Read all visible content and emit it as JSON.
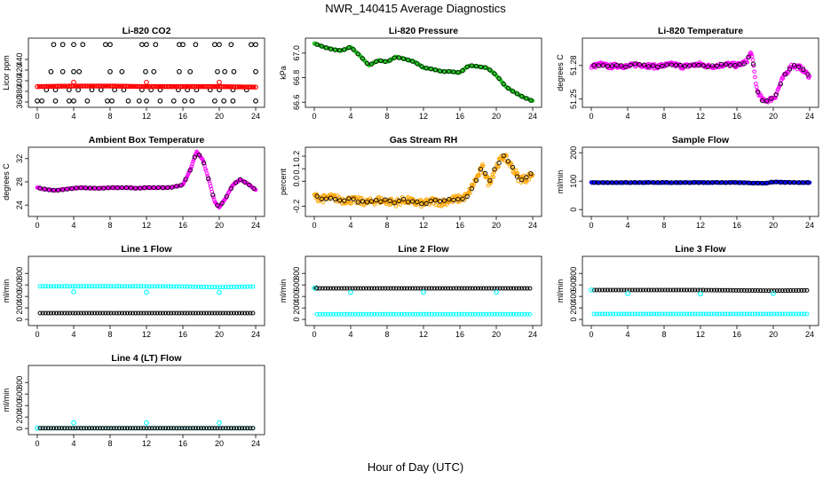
{
  "figure": {
    "title": "NWR_140415  Average Diagnostics",
    "xlabel": "Hour of Day (UTC)"
  },
  "colors": {
    "black": "#000000",
    "red": "#ff0000",
    "green": "#22cc22",
    "magenta": "#ff00ff",
    "orange": "#ffa500",
    "cyan": "#00ffff",
    "blue": "#0000ff"
  },
  "chart_data": [
    {
      "id": "co2",
      "type": "scatter",
      "title": "Li-820 CO2",
      "ylabel": "Licor ppm",
      "xlim": [
        0,
        24
      ],
      "xticks": [
        0,
        4,
        8,
        12,
        16,
        20,
        24
      ],
      "ylim": [
        355,
        475
      ],
      "yticks": [
        360,
        380,
        400,
        420,
        440
      ],
      "ytick_labels": [
        "360",
        "380",
        "400",
        "420",
        "440"
      ],
      "series": [
        {
          "name": "co2 high",
          "color": "black",
          "x": [
            1.8,
            2.8,
            4.0,
            5.0,
            7.5,
            8.0,
            11.5,
            12.0,
            13.0,
            15.6,
            16.0,
            17.4,
            19.5,
            20.0,
            21.3,
            23.5,
            24.0
          ],
          "y": [
            468,
            468,
            468,
            468,
            468,
            468,
            468,
            468,
            468,
            468,
            468,
            468,
            468,
            468,
            468,
            468,
            468
          ]
        },
        {
          "name": "co2 mid",
          "color": "black",
          "x": [
            1.5,
            2.8,
            4.0,
            4.6,
            8.0,
            9.3,
            11.9,
            12.8,
            15.6,
            16.8,
            19.8,
            20.6,
            21.6,
            24.0
          ],
          "y": [
            417,
            417,
            417,
            417,
            417,
            417,
            417,
            417,
            417,
            417,
            417,
            417,
            417,
            417
          ]
        },
        {
          "name": "co2 low-mid",
          "color": "black",
          "x": [
            1.0,
            2.0,
            3.5,
            4.5,
            6.0,
            7.0,
            8.5,
            9.5,
            11.5,
            12.5,
            13.5,
            15.5,
            16.5,
            17.5,
            19.0,
            20.0,
            21.5,
            23.0
          ],
          "y": [
            383,
            383,
            383,
            383,
            383,
            383,
            383,
            383,
            383,
            383,
            383,
            383,
            383,
            383,
            383,
            383,
            383,
            383
          ]
        },
        {
          "name": "co2 low",
          "color": "black",
          "x": [
            0.0,
            0.5,
            2.0,
            3.5,
            4.0,
            5.5,
            7.7,
            8.2,
            10.0,
            11.2,
            12.0,
            13.5,
            15.0,
            16.2,
            17.0,
            19.5,
            20.5,
            21.5,
            24.0
          ],
          "y": [
            362,
            362,
            362,
            362,
            362,
            362,
            362,
            362,
            362,
            362,
            362,
            362,
            362,
            362,
            362,
            362,
            362,
            362,
            362
          ]
        },
        {
          "name": "co2 average",
          "color": "red",
          "line_from": 0,
          "line_to": 24,
          "line_y": [
            389,
            390,
            390,
            389,
            389,
            389,
            388
          ],
          "x": [
            4.0,
            12.0,
            20.0
          ],
          "y": [
            397,
            397,
            397
          ]
        }
      ]
    },
    {
      "id": "pressure",
      "type": "scatter",
      "title": "Li-820 Pressure",
      "ylabel": "kPa",
      "xlim": [
        0,
        24
      ],
      "xticks": [
        0,
        4,
        8,
        12,
        16,
        20,
        24
      ],
      "ylim": [
        66.58,
        67.1
      ],
      "yticks": [
        66.6,
        66.8,
        67.0
      ],
      "ytick_labels": [
        "66.6",
        "66.8",
        "67.0"
      ],
      "series": [
        {
          "name": "pressure",
          "color": "green",
          "x": [
            0,
            1,
            2,
            3,
            4,
            5,
            6,
            7,
            8,
            9,
            10,
            11,
            12,
            13,
            14,
            15,
            16,
            17,
            18,
            19,
            20,
            21,
            22,
            23,
            24
          ],
          "y": [
            67.08,
            67.05,
            67.03,
            67.02,
            67.05,
            66.98,
            66.9,
            66.94,
            66.93,
            66.97,
            66.95,
            66.93,
            66.88,
            66.87,
            66.85,
            66.85,
            66.84,
            66.9,
            66.89,
            66.88,
            66.82,
            66.73,
            66.68,
            66.64,
            66.61
          ]
        }
      ]
    },
    {
      "id": "li_temp",
      "type": "scatter",
      "title": "Li-820 Temperature",
      "ylabel": "degrees C",
      "xlim": [
        0,
        24
      ],
      "xticks": [
        0,
        4,
        8,
        12,
        16,
        20,
        24
      ],
      "ylim": [
        51.245,
        51.302
      ],
      "yticks": [
        51.25,
        51.28
      ],
      "ytick_labels": [
        "51.25",
        "51.28"
      ],
      "series": [
        {
          "name": "li-820 temperature",
          "color": "magenta",
          "x": [
            0,
            1,
            2,
            3,
            4,
            5,
            6,
            7,
            8,
            9,
            10,
            11,
            12,
            13,
            14,
            15,
            16,
            17,
            17.6,
            18.2,
            18.8,
            19.5,
            20.2,
            21,
            22,
            23,
            24
          ],
          "y": [
            51.279,
            51.281,
            51.279,
            51.28,
            51.279,
            51.281,
            51.28,
            51.279,
            51.28,
            51.281,
            51.279,
            51.28,
            51.281,
            51.279,
            51.28,
            51.281,
            51.28,
            51.283,
            51.292,
            51.258,
            51.249,
            51.249,
            51.252,
            51.268,
            51.28,
            51.278,
            51.27
          ]
        }
      ]
    },
    {
      "id": "box_temp",
      "type": "scatter",
      "title": "Ambient Box Temperature",
      "ylabel": "degrees C",
      "xlim": [
        0,
        24
      ],
      "xticks": [
        0,
        4,
        8,
        12,
        16,
        20,
        24
      ],
      "ylim": [
        22.5,
        33.5
      ],
      "yticks": [
        24,
        28,
        32
      ],
      "ytick_labels": [
        "24",
        "28",
        "32"
      ],
      "series": [
        {
          "name": "box temperature",
          "color": "magenta",
          "x": [
            0,
            1,
            2,
            3,
            4,
            5,
            6,
            7,
            8,
            9,
            10,
            11,
            12,
            13,
            14,
            15,
            16,
            16.8,
            17.5,
            18.2,
            19.0,
            19.5,
            20.0,
            20.7,
            21.5,
            22.3,
            23.0,
            24.0
          ],
          "y": [
            27.0,
            26.7,
            26.5,
            26.7,
            26.9,
            27.0,
            26.9,
            26.9,
            27.0,
            27.0,
            27.0,
            26.9,
            27.0,
            27.0,
            27.0,
            27.1,
            27.5,
            30.0,
            33.2,
            31.8,
            27.5,
            24.5,
            23.6,
            25.2,
            27.5,
            28.4,
            27.8,
            26.6
          ]
        }
      ]
    },
    {
      "id": "rh",
      "type": "scatter",
      "title": "Gas Stream RH",
      "ylabel": "percent",
      "xlim": [
        0,
        24
      ],
      "xticks": [
        0,
        4,
        8,
        12,
        16,
        20,
        24
      ],
      "ylim": [
        -0.26,
        0.25
      ],
      "yticks": [
        -0.2,
        0.0,
        0.1,
        0.2
      ],
      "ytick_labels": [
        "-0.2",
        "0.0",
        "0.1",
        "0.2"
      ],
      "series": [
        {
          "name": "relative humidity",
          "color": "orange",
          "x": [
            0,
            1,
            2,
            3,
            4,
            5,
            6,
            7,
            8,
            9,
            10,
            11,
            12,
            13,
            14,
            15,
            16,
            16.8,
            17.5,
            18.5,
            19.2,
            20.0,
            20.8,
            21.5,
            22.5,
            23.3,
            24.0
          ],
          "y": [
            -0.12,
            -0.14,
            -0.13,
            -0.15,
            -0.15,
            -0.16,
            -0.17,
            -0.15,
            -0.16,
            -0.17,
            -0.15,
            -0.17,
            -0.18,
            -0.16,
            -0.17,
            -0.15,
            -0.14,
            -0.12,
            -0.02,
            0.11,
            -0.02,
            0.12,
            0.2,
            0.14,
            0.02,
            0.02,
            0.06
          ]
        }
      ]
    },
    {
      "id": "sample_flow",
      "type": "scatter",
      "title": "Sample Flow",
      "ylabel": "ml/min",
      "xlim": [
        0,
        24
      ],
      "xticks": [
        0,
        4,
        8,
        12,
        16,
        20,
        24
      ],
      "ylim": [
        -15,
        210
      ],
      "yticks": [
        0,
        100,
        200
      ],
      "ytick_labels": [
        "0",
        "100",
        "200"
      ],
      "series": [
        {
          "name": "sample flow",
          "color": "blue",
          "x": [
            0,
            2,
            4,
            6,
            8,
            10,
            12,
            14,
            16,
            18,
            19,
            20,
            22,
            24
          ],
          "y": [
            95,
            95,
            95,
            95,
            95,
            95,
            95,
            95,
            95,
            93,
            92,
            97,
            95,
            95
          ]
        }
      ]
    },
    {
      "id": "line1",
      "type": "scatter",
      "title": "Line 1 Flow",
      "ylabel": "ml/min",
      "xlim": [
        0,
        24
      ],
      "xticks": [
        0,
        4,
        8,
        12,
        16,
        20,
        24
      ],
      "ylim": [
        -60,
        1050
      ],
      "yticks": [
        0,
        200,
        400,
        600,
        800
      ],
      "ytick_labels": [
        "0",
        "200",
        "400",
        "600",
        "800"
      ],
      "series": [
        {
          "name": "line 1 cyan",
          "color": "cyan",
          "line_y": [
            575,
            575,
            575,
            575,
            572,
            560,
            572
          ],
          "x": [
            4.0,
            12.0,
            20.0
          ],
          "y": [
            480,
            470,
            470
          ]
        },
        {
          "name": "line 1 black",
          "color": "black",
          "line_y": [
            110,
            110,
            110,
            110,
            110,
            110,
            110
          ]
        }
      ]
    },
    {
      "id": "line2",
      "type": "scatter",
      "title": "Line 2 Flow",
      "ylabel": "ml/min",
      "xlim": [
        0,
        24
      ],
      "xticks": [
        0,
        4,
        8,
        12,
        16,
        20,
        24
      ],
      "ylim": [
        -60,
        1050
      ],
      "yticks": [
        0,
        200,
        400,
        600,
        800
      ],
      "ytick_labels": [
        "0",
        "200",
        "400",
        "600",
        "800"
      ],
      "series": [
        {
          "name": "line 2 black",
          "color": "black",
          "line_y": [
            540,
            540,
            540,
            540,
            540,
            540,
            540
          ],
          "x": [
            0.2
          ],
          "y": [
            545
          ]
        },
        {
          "name": "line 2 cyan",
          "color": "cyan",
          "line_y": [
            90,
            90,
            90,
            90,
            90,
            90,
            90
          ],
          "x": [
            0.0,
            4.0,
            12.0,
            20.0
          ],
          "y": [
            545,
            470,
            470,
            470
          ]
        }
      ]
    },
    {
      "id": "line3",
      "type": "scatter",
      "title": "Line 3 Flow",
      "ylabel": "ml/min",
      "xlim": [
        0,
        24
      ],
      "xticks": [
        0,
        4,
        8,
        12,
        16,
        20,
        24
      ],
      "ylim": [
        -60,
        1050
      ],
      "yticks": [
        0,
        200,
        400,
        600,
        800
      ],
      "ytick_labels": [
        "0",
        "200",
        "400",
        "600",
        "800"
      ],
      "series": [
        {
          "name": "line 3 black",
          "color": "black",
          "line_y": [
            510,
            510,
            510,
            510,
            505,
            500,
            505
          ]
        },
        {
          "name": "line 3 cyan",
          "color": "cyan",
          "line_y": [
            95,
            95,
            95,
            95,
            95,
            95,
            95
          ],
          "x": [
            0.0,
            4.0,
            12.0,
            20.0
          ],
          "y": [
            510,
            450,
            445,
            450
          ]
        }
      ]
    },
    {
      "id": "line4",
      "type": "scatter",
      "title": "Line 4 (LT) Flow",
      "ylabel": "ml/min",
      "xlim": [
        0,
        24
      ],
      "xticks": [
        0,
        4,
        8,
        12,
        16,
        20,
        24
      ],
      "ylim": [
        -60,
        1050
      ],
      "yticks": [
        0,
        200,
        400,
        600,
        800
      ],
      "ytick_labels": [
        "0",
        "200",
        "400",
        "600",
        "800"
      ],
      "series": [
        {
          "name": "line 4 cyan",
          "color": "cyan",
          "line_y": [
            5,
            5,
            5,
            5,
            5,
            5,
            5
          ],
          "x": [
            0.0,
            4.0,
            12.0,
            20.0
          ],
          "y": [
            5,
            100,
            100,
            100
          ]
        },
        {
          "name": "line 4 black",
          "color": "black",
          "line_y": [
            5,
            5,
            5,
            5,
            5,
            5,
            5
          ]
        }
      ]
    }
  ]
}
